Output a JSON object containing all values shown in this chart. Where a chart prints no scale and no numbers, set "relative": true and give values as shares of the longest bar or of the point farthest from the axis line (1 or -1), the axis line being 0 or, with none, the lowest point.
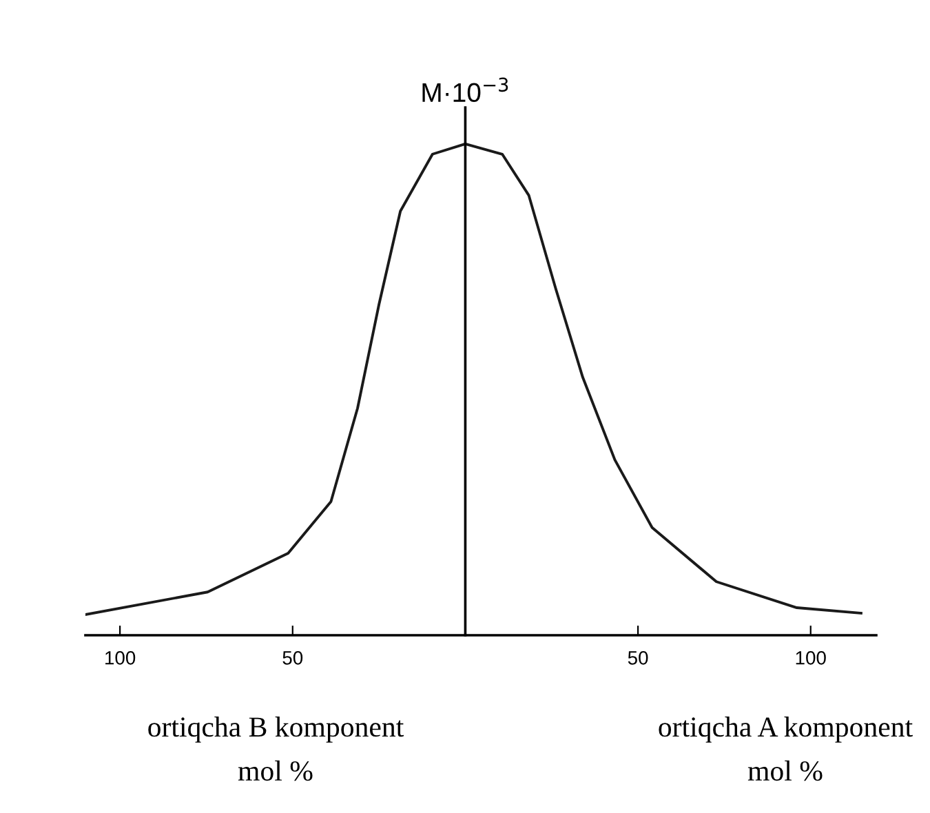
{
  "chart_data": {
    "type": "line",
    "relative": true,
    "ylabel": "M·10$^{−3}$",
    "x": [
      -110,
      -74.6,
      -51.3,
      -38.9,
      -31.2,
      -25,
      -18.8,
      -9.5,
      0,
      10.7,
      18.4,
      26.2,
      34,
      43.3,
      54.1,
      72.7,
      96,
      114.6
    ],
    "series": [
      {
        "color": "#1a1a1a",
        "values": [
          0.042,
          0.088,
          0.167,
          0.272,
          0.462,
          0.673,
          0.863,
          0.979,
          1,
          0.979,
          0.895,
          0.705,
          0.525,
          0.357,
          0.219,
          0.109,
          0.056,
          0.045
        ]
      }
    ],
    "xlim": [
      -110,
      119
    ],
    "xticks": [
      {
        "value": -100,
        "label": "100"
      },
      {
        "value": -50,
        "label": "50"
      },
      {
        "value": 50,
        "label": "50"
      },
      {
        "value": 100,
        "label": "100"
      }
    ],
    "annotations": [
      "ortiqcha B komponent\nmol %",
      "ortiqcha A komponent\nmol %"
    ],
    "grid": false,
    "legend": false,
    "marker": "none",
    "line_style": "solid"
  }
}
